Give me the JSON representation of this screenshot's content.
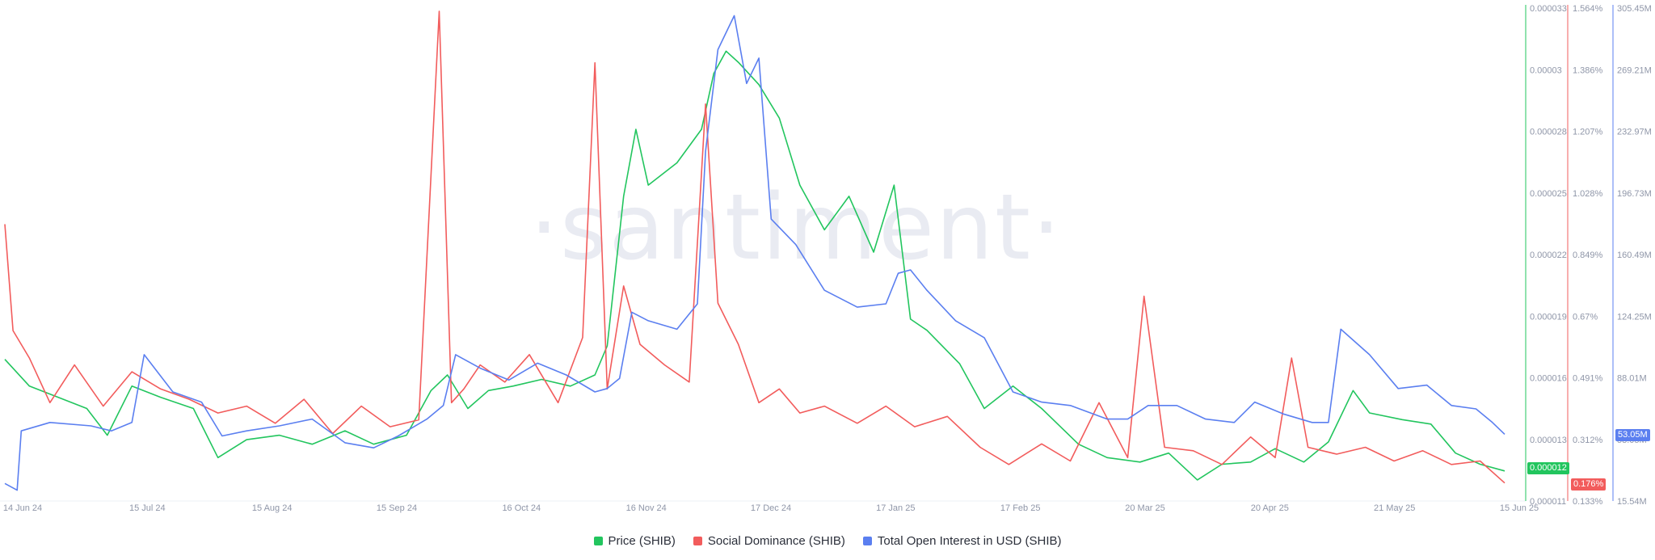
{
  "watermark": "·santiment·",
  "chart_data": {
    "type": "line",
    "x_tick_labels": [
      "14 Jun 24",
      "15 Jul 24",
      "15 Aug 24",
      "15 Sep 24",
      "16 Oct 24",
      "16 Nov 24",
      "17 Dec 24",
      "17 Jan 25",
      "17 Feb 25",
      "20 Mar 25",
      "20 Apr 25",
      "21 May 25",
      "15 Jun 25"
    ],
    "xlim": [
      "2024-06-14",
      "2025-06-15"
    ],
    "axes": {
      "price": {
        "ticks": [
          "0.000033",
          "0.00003",
          "0.000028",
          "0.000025",
          "0.000022",
          "0.000019",
          "0.000016",
          "0.000013",
          "0.000011"
        ],
        "ylim": [
          1.1e-05,
          3.3e-05
        ],
        "color": "#22c55e"
      },
      "social": {
        "ticks": [
          "1.564%",
          "1.386%",
          "1.207%",
          "1.028%",
          "0.849%",
          "0.67%",
          "0.491%",
          "0.312%",
          "0.133%"
        ],
        "ylim": [
          0.133,
          1.564
        ],
        "color": "#f25c5c"
      },
      "oi": {
        "ticks": [
          "305.45M",
          "269.21M",
          "232.97M",
          "196.73M",
          "160.49M",
          "124.25M",
          "88.01M",
          "53.05M",
          "15.54M"
        ],
        "ylim": [
          15.54,
          305.45
        ],
        "color": "#5b7ff0"
      }
    },
    "current_values": {
      "price": "0.000012",
      "social": "0.176%",
      "oi": "53.05M"
    },
    "series": [
      {
        "name": "Price (SHIB)",
        "axis": "price",
        "color": "#22c55e",
        "x": [
          "2024-06-14",
          "2024-06-20",
          "2024-06-27",
          "2024-07-04",
          "2024-07-09",
          "2024-07-15",
          "2024-07-22",
          "2024-07-30",
          "2024-08-05",
          "2024-08-12",
          "2024-08-20",
          "2024-08-28",
          "2024-09-05",
          "2024-09-12",
          "2024-09-20",
          "2024-09-26",
          "2024-09-30",
          "2024-10-05",
          "2024-10-10",
          "2024-10-16",
          "2024-10-23",
          "2024-10-30",
          "2024-11-05",
          "2024-11-08",
          "2024-11-12",
          "2024-11-15",
          "2024-11-18",
          "2024-11-25",
          "2024-12-01",
          "2024-12-04",
          "2024-12-07",
          "2024-12-10",
          "2024-12-15",
          "2024-12-20",
          "2024-12-25",
          "2024-12-31",
          "2025-01-06",
          "2025-01-12",
          "2025-01-17",
          "2025-01-21",
          "2025-01-25",
          "2025-02-02",
          "2025-02-08",
          "2025-02-15",
          "2025-02-22",
          "2025-03-03",
          "2025-03-10",
          "2025-03-18",
          "2025-03-25",
          "2025-04-01",
          "2025-04-07",
          "2025-04-14",
          "2025-04-20",
          "2025-04-27",
          "2025-05-03",
          "2025-05-09",
          "2025-05-13",
          "2025-05-21",
          "2025-05-28",
          "2025-06-03",
          "2025-06-09",
          "2025-06-15"
        ],
        "y": [
          1.72e-05,
          1.6e-05,
          1.55e-05,
          1.5e-05,
          1.38e-05,
          1.6e-05,
          1.55e-05,
          1.5e-05,
          1.28e-05,
          1.36e-05,
          1.38e-05,
          1.34e-05,
          1.4e-05,
          1.34e-05,
          1.38e-05,
          1.58e-05,
          1.65e-05,
          1.5e-05,
          1.58e-05,
          1.6e-05,
          1.63e-05,
          1.6e-05,
          1.65e-05,
          1.78e-05,
          2.45e-05,
          2.75e-05,
          2.5e-05,
          2.6e-05,
          2.75e-05,
          3e-05,
          3.1e-05,
          3.05e-05,
          2.95e-05,
          2.8e-05,
          2.5e-05,
          2.3e-05,
          2.45e-05,
          2.2e-05,
          2.5e-05,
          1.9e-05,
          1.85e-05,
          1.7e-05,
          1.5e-05,
          1.6e-05,
          1.5e-05,
          1.34e-05,
          1.28e-05,
          1.26e-05,
          1.3e-05,
          1.18e-05,
          1.25e-05,
          1.26e-05,
          1.32e-05,
          1.26e-05,
          1.35e-05,
          1.58e-05,
          1.48e-05,
          1.45e-05,
          1.43e-05,
          1.3e-05,
          1.25e-05,
          1.22e-05
        ]
      },
      {
        "name": "Social Dominance (SHIB)",
        "axis": "social",
        "color": "#f25c5c",
        "x": [
          "2024-06-14",
          "2024-06-16",
          "2024-06-20",
          "2024-06-25",
          "2024-07-01",
          "2024-07-08",
          "2024-07-15",
          "2024-07-22",
          "2024-07-29",
          "2024-08-05",
          "2024-08-12",
          "2024-08-19",
          "2024-08-26",
          "2024-09-02",
          "2024-09-09",
          "2024-09-16",
          "2024-09-23",
          "2024-09-28",
          "2024-10-01",
          "2024-10-04",
          "2024-10-08",
          "2024-10-14",
          "2024-10-20",
          "2024-10-27",
          "2024-11-02",
          "2024-11-05",
          "2024-11-08",
          "2024-11-12",
          "2024-11-16",
          "2024-11-22",
          "2024-11-28",
          "2024-12-02",
          "2024-12-05",
          "2024-12-10",
          "2024-12-15",
          "2024-12-20",
          "2024-12-25",
          "2024-12-31",
          "2025-01-08",
          "2025-01-15",
          "2025-01-22",
          "2025-01-30",
          "2025-02-07",
          "2025-02-14",
          "2025-02-22",
          "2025-03-01",
          "2025-03-08",
          "2025-03-15",
          "2025-03-19",
          "2025-03-24",
          "2025-03-31",
          "2025-04-07",
          "2025-04-14",
          "2025-04-20",
          "2025-04-24",
          "2025-04-28",
          "2025-05-05",
          "2025-05-12",
          "2025-05-19",
          "2025-05-26",
          "2025-06-02",
          "2025-06-09",
          "2025-06-15"
        ],
        "y": [
          0.93,
          0.62,
          0.54,
          0.41,
          0.52,
          0.4,
          0.5,
          0.45,
          0.42,
          0.38,
          0.4,
          0.35,
          0.42,
          0.32,
          0.4,
          0.34,
          0.36,
          1.55,
          0.41,
          0.45,
          0.52,
          0.47,
          0.55,
          0.41,
          0.6,
          1.4,
          0.45,
          0.75,
          0.58,
          0.52,
          0.47,
          1.28,
          0.7,
          0.58,
          0.41,
          0.45,
          0.38,
          0.4,
          0.35,
          0.4,
          0.34,
          0.37,
          0.28,
          0.23,
          0.29,
          0.24,
          0.41,
          0.25,
          0.72,
          0.28,
          0.27,
          0.23,
          0.31,
          0.25,
          0.54,
          0.28,
          0.26,
          0.28,
          0.24,
          0.27,
          0.23,
          0.24,
          0.176
        ]
      },
      {
        "name": "Total Open Interest in USD (SHIB)",
        "axis": "oi",
        "color": "#5b7ff0",
        "x": [
          "2024-06-14",
          "2024-06-17",
          "2024-06-18",
          "2024-06-25",
          "2024-07-05",
          "2024-07-10",
          "2024-07-15",
          "2024-07-18",
          "2024-07-25",
          "2024-08-01",
          "2024-08-06",
          "2024-08-12",
          "2024-08-20",
          "2024-08-28",
          "2024-09-05",
          "2024-09-12",
          "2024-09-18",
          "2024-09-25",
          "2024-09-29",
          "2024-10-02",
          "2024-10-08",
          "2024-10-15",
          "2024-10-22",
          "2024-10-29",
          "2024-11-05",
          "2024-11-08",
          "2024-11-11",
          "2024-11-14",
          "2024-11-18",
          "2024-11-25",
          "2024-11-30",
          "2024-12-02",
          "2024-12-05",
          "2024-12-09",
          "2024-12-12",
          "2024-12-15",
          "2024-12-18",
          "2024-12-24",
          "2024-12-31",
          "2025-01-08",
          "2025-01-15",
          "2025-01-18",
          "2025-01-21",
          "2025-01-25",
          "2025-02-01",
          "2025-02-08",
          "2025-02-15",
          "2025-02-22",
          "2025-03-01",
          "2025-03-10",
          "2025-03-15",
          "2025-03-20",
          "2025-03-27",
          "2025-04-03",
          "2025-04-10",
          "2025-04-15",
          "2025-04-22",
          "2025-04-29",
          "2025-05-03",
          "2025-05-06",
          "2025-05-13",
          "2025-05-20",
          "2025-05-27",
          "2025-06-02",
          "2025-06-08",
          "2025-06-12",
          "2025-06-15"
        ],
        "y": [
          24,
          20,
          55,
          60,
          58,
          55,
          60,
          100,
          78,
          72,
          52,
          55,
          58,
          62,
          48,
          45,
          52,
          62,
          70,
          100,
          92,
          85,
          95,
          88,
          78,
          80,
          86,
          125,
          120,
          115,
          130,
          220,
          280,
          300,
          260,
          275,
          180,
          165,
          138,
          128,
          130,
          148,
          150,
          138,
          120,
          110,
          78,
          72,
          70,
          62,
          62,
          70,
          70,
          62,
          60,
          72,
          65,
          60,
          60,
          115,
          100,
          80,
          82,
          70,
          68,
          60,
          53
        ]
      }
    ]
  }
}
